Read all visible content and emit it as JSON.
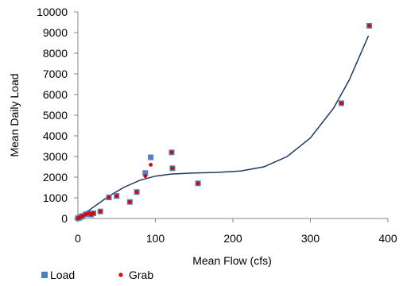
{
  "chart_data": {
    "type": "scatter",
    "xlabel": "Mean Flow (cfs)",
    "ylabel": "Mean Daily Load",
    "xlim": [
      0,
      400
    ],
    "ylim": [
      0,
      10000
    ],
    "x_ticks": [
      0,
      100,
      200,
      300,
      400
    ],
    "y_ticks": [
      0,
      1000,
      2000,
      3000,
      4000,
      5000,
      6000,
      7000,
      8000,
      9000,
      10000
    ],
    "grid": false,
    "legend_position": "bottom-left",
    "series": [
      {
        "name": "Load",
        "marker": "square",
        "color": "#4f81bd",
        "points": [
          {
            "x": 0,
            "y": 10
          },
          {
            "x": 2,
            "y": 40
          },
          {
            "x": 4,
            "y": 80
          },
          {
            "x": 6,
            "y": 120
          },
          {
            "x": 10,
            "y": 200
          },
          {
            "x": 14,
            "y": 250
          },
          {
            "x": 17,
            "y": 190
          },
          {
            "x": 20,
            "y": 250
          },
          {
            "x": 29,
            "y": 340
          },
          {
            "x": 40,
            "y": 1020
          },
          {
            "x": 50,
            "y": 1090
          },
          {
            "x": 67,
            "y": 800
          },
          {
            "x": 76,
            "y": 1280
          },
          {
            "x": 87,
            "y": 2200
          },
          {
            "x": 94,
            "y": 2960
          },
          {
            "x": 121,
            "y": 3200
          },
          {
            "x": 122,
            "y": 2430
          },
          {
            "x": 155,
            "y": 1700
          },
          {
            "x": 340,
            "y": 5580
          },
          {
            "x": 376,
            "y": 9330
          }
        ]
      },
      {
        "name": "Grab",
        "marker": "circle",
        "color": "#e00000",
        "points": [
          {
            "x": 0,
            "y": 10
          },
          {
            "x": 2,
            "y": 40
          },
          {
            "x": 4,
            "y": 80
          },
          {
            "x": 6,
            "y": 120
          },
          {
            "x": 10,
            "y": 200
          },
          {
            "x": 14,
            "y": 250
          },
          {
            "x": 17,
            "y": 190
          },
          {
            "x": 20,
            "y": 250
          },
          {
            "x": 29,
            "y": 340
          },
          {
            "x": 40,
            "y": 1020
          },
          {
            "x": 50,
            "y": 1090
          },
          {
            "x": 67,
            "y": 800
          },
          {
            "x": 76,
            "y": 1280
          },
          {
            "x": 87,
            "y": 2050
          },
          {
            "x": 94,
            "y": 2600
          },
          {
            "x": 121,
            "y": 3200
          },
          {
            "x": 122,
            "y": 2430
          },
          {
            "x": 155,
            "y": 1700
          },
          {
            "x": 340,
            "y": 5580
          },
          {
            "x": 376,
            "y": 9330
          }
        ]
      }
    ],
    "trendline": {
      "type": "polynomial",
      "color": "#1f3864",
      "points": [
        {
          "x": 0,
          "y": 0
        },
        {
          "x": 20,
          "y": 550
        },
        {
          "x": 40,
          "y": 1080
        },
        {
          "x": 60,
          "y": 1520
        },
        {
          "x": 80,
          "y": 1850
        },
        {
          "x": 100,
          "y": 2050
        },
        {
          "x": 120,
          "y": 2150
        },
        {
          "x": 150,
          "y": 2200
        },
        {
          "x": 180,
          "y": 2230
        },
        {
          "x": 210,
          "y": 2300
        },
        {
          "x": 240,
          "y": 2500
        },
        {
          "x": 270,
          "y": 3000
        },
        {
          "x": 300,
          "y": 3900
        },
        {
          "x": 330,
          "y": 5350
        },
        {
          "x": 350,
          "y": 6700
        },
        {
          "x": 375,
          "y": 8850
        }
      ]
    }
  }
}
